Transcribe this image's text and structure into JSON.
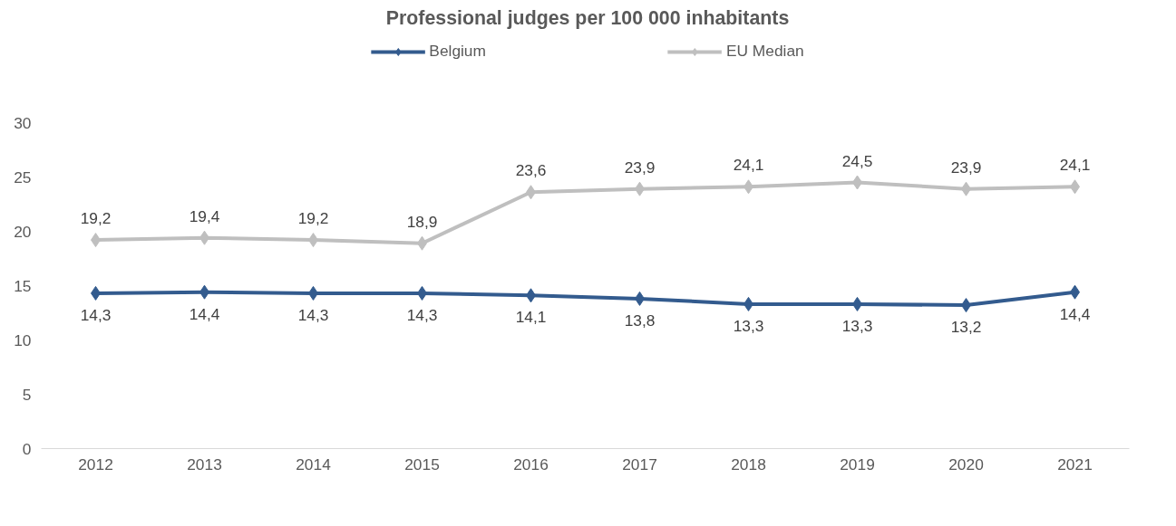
{
  "chart_data": {
    "type": "line",
    "title": "Professional judges per 100 000 inhabitants",
    "categories": [
      "2012",
      "2013",
      "2014",
      "2015",
      "2016",
      "2017",
      "2018",
      "2019",
      "2020",
      "2021"
    ],
    "series": [
      {
        "name": "Belgium",
        "color": "#335b8e",
        "values": [
          14.3,
          14.4,
          14.3,
          14.3,
          14.1,
          13.8,
          13.3,
          13.3,
          13.2,
          14.4
        ],
        "value_labels": [
          "14,3",
          "14,4",
          "14,3",
          "14,3",
          "14,1",
          "13,8",
          "13,3",
          "13,3",
          "13,2",
          "14,4"
        ]
      },
      {
        "name": "EU Median",
        "color": "#bfbfbf",
        "values": [
          19.2,
          19.4,
          19.2,
          18.9,
          23.6,
          23.9,
          24.1,
          24.5,
          23.9,
          24.1
        ],
        "value_labels": [
          "19,2",
          "19,4",
          "19,2",
          "18,9",
          "23,6",
          "23,9",
          "24,1",
          "24,5",
          "23,9",
          "24,1"
        ]
      }
    ],
    "ylim": [
      0,
      30
    ],
    "yticks": [
      0,
      5,
      10,
      15,
      20,
      25,
      30
    ],
    "grid": false,
    "legend": "top",
    "marker": "diamond",
    "line_style": "solid"
  }
}
